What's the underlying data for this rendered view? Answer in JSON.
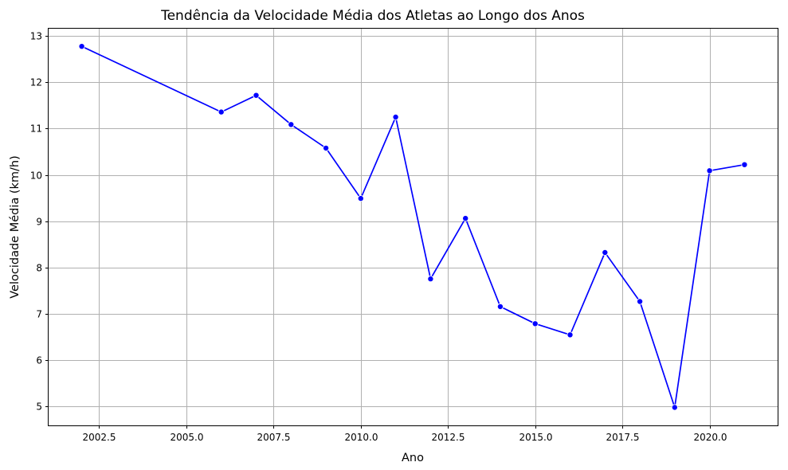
{
  "chart_data": {
    "type": "line",
    "title": "Tendência da Velocidade Média dos Atletas ao Longo dos Anos",
    "xlabel": "Ano",
    "ylabel": "Velocidade Média (km/h)",
    "xlim": [
      2001.05,
      2021.95
    ],
    "ylim": [
      4.58,
      13.18
    ],
    "xticks": [
      2002.5,
      2005.0,
      2007.5,
      2010.0,
      2012.5,
      2015.0,
      2017.5,
      2020.0
    ],
    "xtick_labels": [
      "2002.5",
      "2005.0",
      "2007.5",
      "2010.0",
      "2012.5",
      "2015.0",
      "2017.5",
      "2020.0"
    ],
    "yticks": [
      5,
      6,
      7,
      8,
      9,
      10,
      11,
      12,
      13
    ],
    "ytick_labels": [
      "5",
      "6",
      "7",
      "8",
      "9",
      "10",
      "11",
      "12",
      "13"
    ],
    "grid": true,
    "series": [
      {
        "color": "#0000ff",
        "marker": "circle",
        "x": [
          2002,
          2006,
          2007,
          2008,
          2009,
          2010,
          2011,
          2012,
          2013,
          2014,
          2015,
          2016,
          2017,
          2018,
          2019,
          2020,
          2021
        ],
        "y": [
          12.78,
          11.36,
          11.72,
          11.09,
          10.58,
          9.49,
          11.25,
          7.75,
          9.06,
          7.15,
          6.78,
          6.54,
          8.32,
          7.26,
          4.97,
          10.09,
          10.22
        ]
      }
    ]
  }
}
